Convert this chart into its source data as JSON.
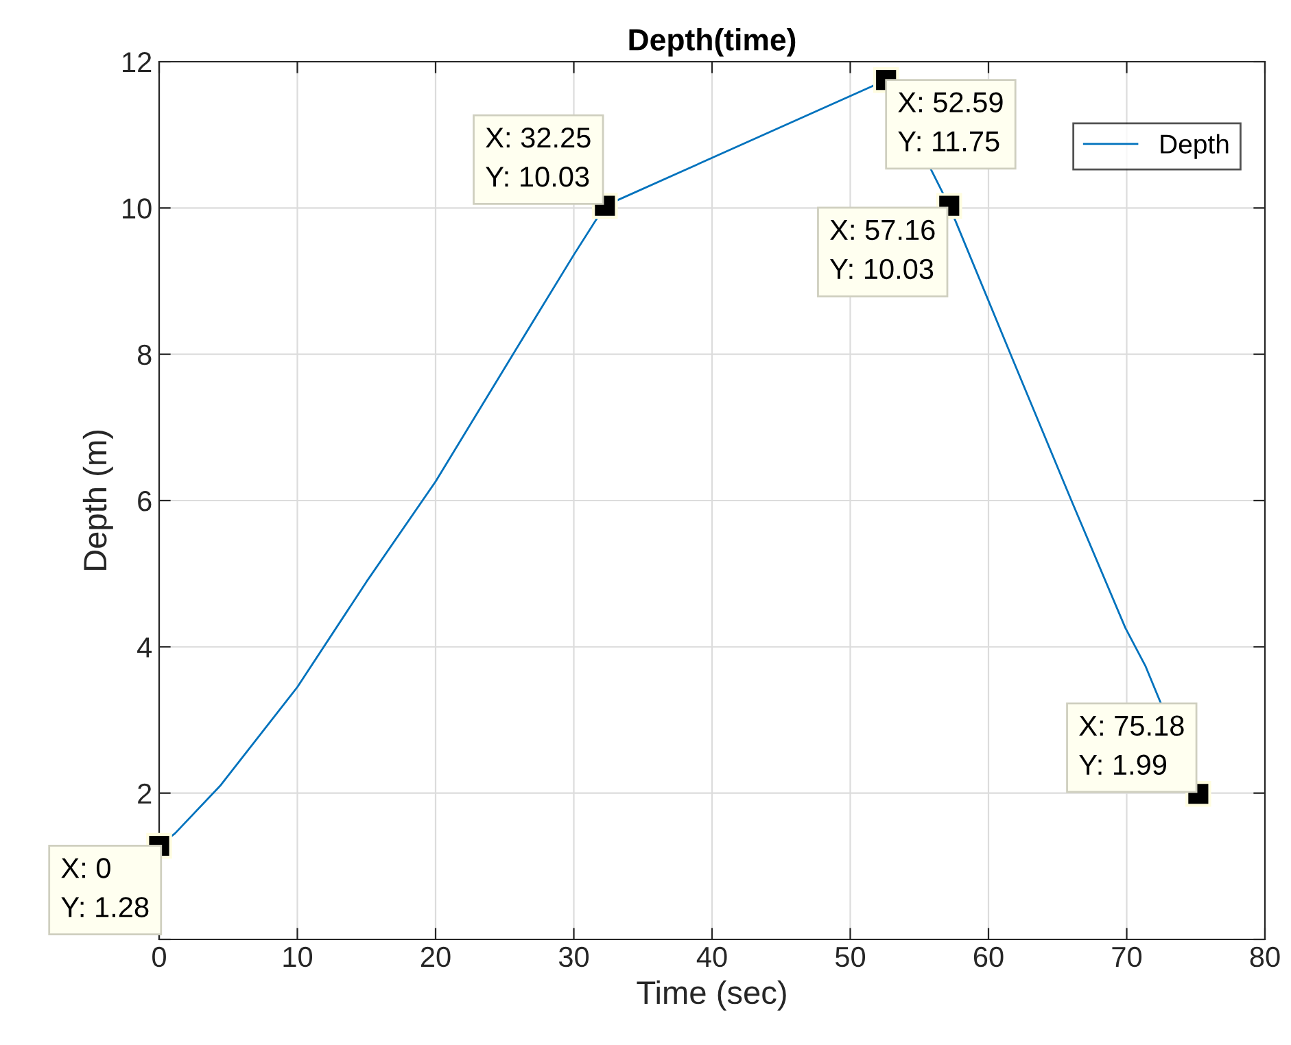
{
  "chart_data": {
    "type": "line",
    "title": "Depth(time)",
    "xlabel": "Time (sec)",
    "ylabel": "Depth (m)",
    "series": [
      {
        "name": "Depth",
        "color": "#0072bd",
        "x": [
          0,
          1.15,
          4.46,
          10,
          15,
          20,
          25.6,
          30,
          32.25,
          52.59,
          57.16,
          61.6,
          66,
          69.9,
          71.35,
          75.18
        ],
        "values": [
          1.28,
          1.45,
          2.11,
          3.45,
          4.89,
          6.26,
          8.0,
          9.36,
          10.03,
          11.75,
          10.03,
          8.0,
          6.0,
          4.26,
          3.74,
          1.99
        ]
      }
    ],
    "annotations": [
      {
        "text": "X: 0\nY: 1.28",
        "x": 0,
        "y": 1.28
      },
      {
        "text": "X: 32.25\nY: 10.03",
        "x": 32.25,
        "y": 10.03
      },
      {
        "text": "X: 52.59\nY: 11.75",
        "x": 52.59,
        "y": 11.75
      },
      {
        "text": "X: 57.16\nY: 10.03",
        "x": 57.16,
        "y": 10.03
      },
      {
        "text": "X: 75.18\nY: 1.99",
        "x": 75.18,
        "y": 1.99
      }
    ],
    "xlim": [
      0,
      80
    ],
    "xticks": [
      0,
      10,
      20,
      30,
      40,
      50,
      60,
      70,
      80
    ],
    "ylim": [
      0,
      12
    ],
    "yticks": [
      {
        "value": 0,
        "label": null
      },
      2,
      4,
      6,
      8,
      10,
      12
    ],
    "grid": true,
    "legend": "top right",
    "marker": "none",
    "line_style": "solid"
  }
}
